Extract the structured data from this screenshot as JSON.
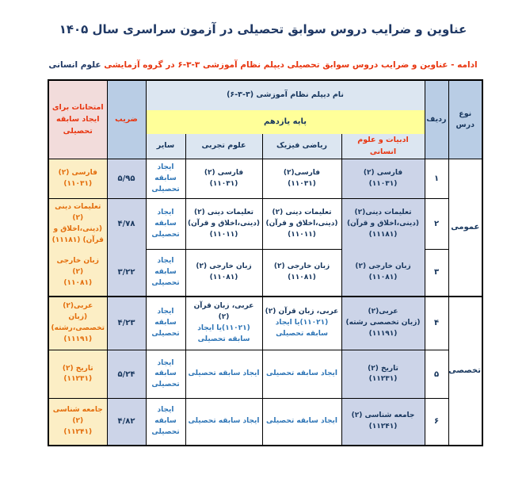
{
  "page": {
    "title": "عناوین و ضرایب دروس سوابق تحصیلی در آزمون سراسری سال ۱۴۰۵",
    "subtitle_main": "ادامه - عناوین و ضرایب دروس سوابق تحصیلی دیپلم نظام آموزشی ۳-۳-۶ در گروه آزمایشی ",
    "subtitle_highlight": "علوم انسانی"
  },
  "table": {
    "headers": {
      "course_type": "نوع درس",
      "row_no": "ردیف",
      "diploma_name": "نام دیپلم نظام آموزشی (۳-۳-۶)",
      "grade": "پایه یازدهم",
      "branches": [
        "ادبیات و علوم انسانی",
        "ریاضی فیزیک",
        "علوم تجربی",
        "سایر"
      ],
      "coefficient": "ضریب",
      "exams": "امتحانات برای ایجاد سابقه تحصیلی"
    },
    "sections": [
      {
        "label": "عمومی"
      },
      {
        "label": "تخصصی"
      }
    ],
    "rows": [
      {
        "no": "۱",
        "hum": "فارسی (۲)\n(۱۱۰۳۱)",
        "math": "فارسی(۲)\n(۱۱۰۳۱)",
        "sci": "فارسی (۲)\n(۱۱۰۳۱)",
        "other": "ایجاد\nسابقه\nتحصیلی",
        "coef": "۵/۹۵",
        "exam": "فارسی (۲)\n(۱۱۰۳۱)"
      },
      {
        "no": "۲",
        "hum": "تعلیمات دینی(۲)\n(دینی،اخلاق و قرآن)\n(۱۱۱۸۱)",
        "math": "تعلیمات دینی (۲)\n(دینی،اخلاق و قرآن)\n(۱۱۰۱۱)",
        "sci": "تعلیمات دینی (۲)\n(دینی،اخلاق و قرآن)\n(۱۱۰۱۱)",
        "other": "ایجاد\nسابقه\nتحصیلی",
        "coef": "۴/۷۸",
        "exam": "تعلیمات دینی (۲)\n(دینی،اخلاق و\nقرآن) (۱۱۱۸۱)"
      },
      {
        "no": "۳",
        "hum": "زبان خارجی (۲)\n(۱۱۰۸۱)",
        "math": "زبان خارجی (۲)\n(۱۱۰۸۱)",
        "sci": "زبان خارجی (۲)\n(۱۱۰۸۱)",
        "other": "ایجاد\nسابقه\nتحصیلی",
        "coef": "۳/۲۲",
        "exam": "زبان خارجی (۲)\n(۱۱۰۸۱)"
      },
      {
        "no": "۴",
        "hum": "عربی(۲)\n(زبان تخصصی رشته)\n(۱۱۱۹۱)",
        "math": {
          "main": "عربی، زبان قرآن (۲)",
          "alt": "(۱۱۰۲۱)یا ایجاد سابقه تحصیلی"
        },
        "sci": {
          "main": "عربی، زبان قرآن (۲)",
          "alt": "(۱۱۰۲۱)یا ایجاد سابقه تحصیلی"
        },
        "other": "ایجاد\nسابقه\nتحصیلی",
        "coef": "۴/۲۳",
        "exam": "عربی(۲)\n(زبان تخصصی،رشته)\n(۱۱۱۹۱)"
      },
      {
        "no": "۵",
        "hum": "تاریخ (۲)\n(۱۱۲۳۱)",
        "math": "ایجاد سابقه تحصیلی",
        "sci": "ایجاد سابقه تحصیلی",
        "other": "ایجاد\nسابقه\nتحصیلی",
        "coef": "۵/۲۴",
        "exam": "تاریخ (۲)\n(۱۱۲۳۱)"
      },
      {
        "no": "۶",
        "hum": "جامعه شناسی (۲)\n(۱۱۲۴۱)",
        "math": "ایجاد سابقه تحصیلی",
        "sci": "ایجاد سابقه تحصیلی",
        "other": "ایجاد\nسابقه\nتحصیلی",
        "coef": "۴/۸۲",
        "exam": "جامعه شناسی (۲)\n(۱۱۲۴۱)"
      }
    ]
  },
  "colors": {
    "title": "#1F3864",
    "red": "#E8350F",
    "navy": "#17365D",
    "blue": "#2E75B6",
    "orange": "#E36C0A",
    "hdr-mid": "#B9CDE5",
    "hdr-light": "#DCE6F1",
    "yellow": "#FFFF99",
    "pink": "#F2DCDB",
    "lavender": "#CCD4E8",
    "cream": "#FCEEC5",
    "border": "#000000"
  }
}
